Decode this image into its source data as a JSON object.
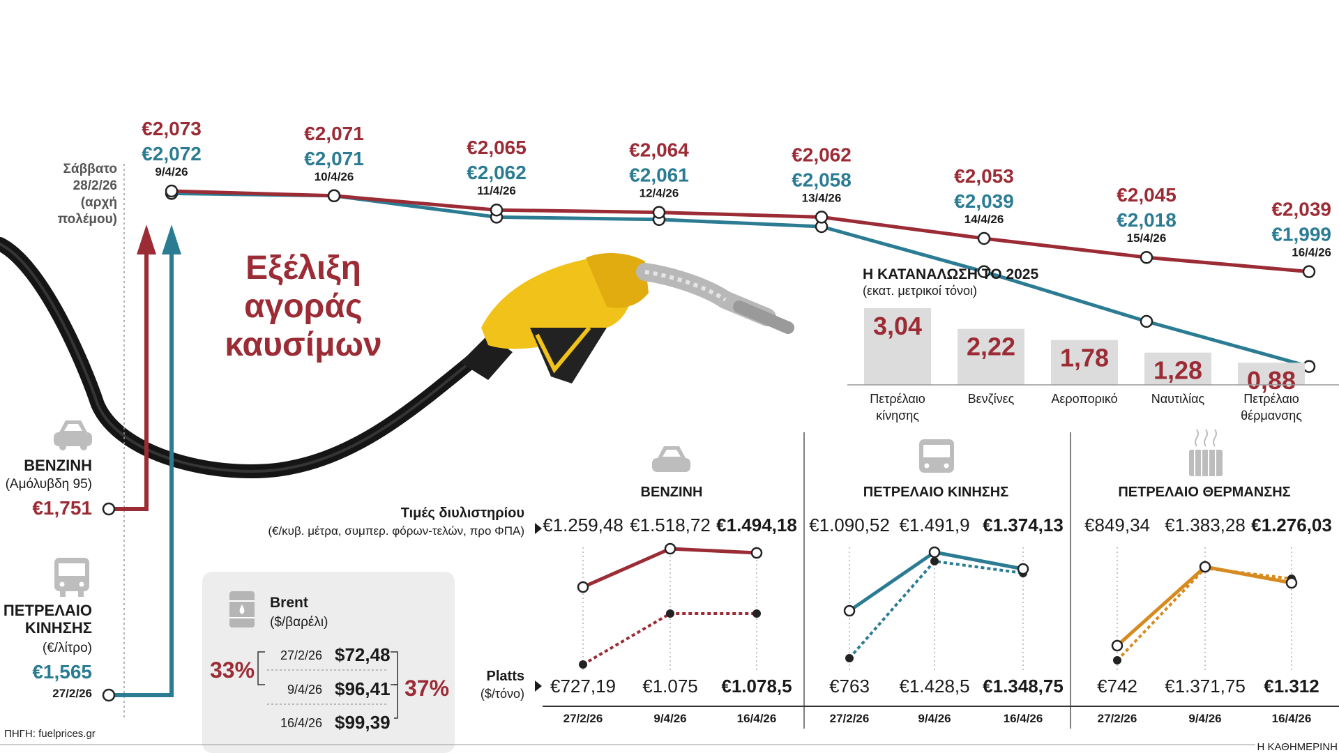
{
  "title": [
    "Εξέλιξη",
    "αγοράς",
    "καυσίμων"
  ],
  "source": "ΠΗΓΗ: fuelprices.gr",
  "publisher": "Η ΚΑΘΗΜΕΡΙΝΗ",
  "colors": {
    "petrol": "#9b2b35",
    "diesel": "#2b7c93",
    "heating": "#d68a1f",
    "bar": "#dcdcdc"
  },
  "timeline": {
    "start_label": [
      "Σάββατο",
      "28/2/26",
      "(αρχή",
      "πολέμου)"
    ]
  },
  "left": {
    "petrol": {
      "name": "ΒΕΝΖΙΝΗ",
      "sub": "(Αμόλυβδη 95)",
      "price": "€1,751"
    },
    "diesel": {
      "name": [
        "ΠΕΤΡΕΛΑΙΟ",
        "ΚΙΝΗΣΗΣ"
      ],
      "sub": "(€/λίτρο)",
      "price": "€1,565",
      "date": "27/2/26"
    }
  },
  "chart_data": [
    {
      "type": "line",
      "categories": [
        "9/4/26",
        "10/4/26",
        "11/4/26",
        "12/4/26",
        "13/4/26",
        "14/4/26",
        "15/4/26",
        "16/4/26"
      ],
      "series": [
        {
          "name": "ΒΕΝΖΙΝΗ",
          "values": [
            2.073,
            2.071,
            2.065,
            2.064,
            2.062,
            2.053,
            2.045,
            2.039
          ],
          "labels": [
            "€2,073",
            "€2,071",
            "€2,065",
            "€2,064",
            "€2,062",
            "€2,053",
            "€2,045",
            "€2,039"
          ]
        },
        {
          "name": "ΠΕΤΡΕΛΑΙΟ ΚΙΝΗΣΗΣ",
          "values": [
            2.072,
            2.071,
            2.062,
            2.061,
            2.058,
            2.039,
            2.018,
            1.999
          ],
          "labels": [
            "€2,072",
            "€2,071",
            "€2,062",
            "€2,061",
            "€2,058",
            "€2,039",
            "€2,018",
            "€1,999"
          ]
        }
      ],
      "start_values": {
        "ΒΕΝΖΙΝΗ": 1.751,
        "ΠΕΤΡΕΛΑΙΟ ΚΙΝΗΣΗΣ": 1.565
      }
    },
    {
      "type": "bar",
      "title": "Η ΚΑΤΑΝΑΛΩΣΗ ΤΟ 2025",
      "ylabel": "(εκατ. μετρικοί τόνοι)",
      "categories": [
        [
          "Πετρέλαιο",
          "κίνησης"
        ],
        [
          "Βενζίνες"
        ],
        [
          "Αεροπορικό"
        ],
        [
          "Ναυτιλίας"
        ],
        [
          "Πετρέλαιο",
          "θέρμανσης"
        ]
      ],
      "values": [
        3.04,
        2.22,
        1.78,
        1.28,
        0.88
      ],
      "value_labels": [
        "3,04",
        "2,22",
        "1,78",
        "1,28",
        "0,88"
      ]
    },
    {
      "type": "line",
      "title": "ΒΕΝΖΙΝΗ",
      "categories": [
        "27/2/26",
        "9/4/26",
        "16/4/26"
      ],
      "series": [
        {
          "name": "Τιμές διυλιστηρίου",
          "values": [
            1259.48,
            1518.72,
            1494.18
          ],
          "labels": [
            "€1.259,48",
            "€1.518,72",
            "€1.494,18"
          ]
        },
        {
          "name": "Platts",
          "values": [
            727.19,
            1075,
            1078.5
          ],
          "labels": [
            "€727,19",
            "€1.075",
            "€1.078,5"
          ]
        }
      ]
    },
    {
      "type": "line",
      "title": "ΠΕΤΡΕΛΑΙΟ ΚΙΝΗΣΗΣ",
      "categories": [
        "27/2/26",
        "9/4/26",
        "16/4/26"
      ],
      "series": [
        {
          "name": "Τιμές διυλιστηρίου",
          "values": [
            1090.52,
            1491.9,
            1374.13
          ],
          "labels": [
            "€1.090,52",
            "€1.491,9",
            "€1.374,13"
          ]
        },
        {
          "name": "Platts",
          "values": [
            763,
            1428.5,
            1348.75
          ],
          "labels": [
            "€763",
            "€1.428,5",
            "€1.348,75"
          ]
        }
      ]
    },
    {
      "type": "line",
      "title": "ΠΕΤΡΕΛΑΙΟ ΘΕΡΜΑΝΣΗΣ",
      "categories": [
        "27/2/26",
        "9/4/26",
        "16/4/26"
      ],
      "series": [
        {
          "name": "Τιμές διυλιστηρίου",
          "values": [
            849.34,
            1383.28,
            1276.03
          ],
          "labels": [
            "€849,34",
            "€1.383,28",
            "€1.276,03"
          ]
        },
        {
          "name": "Platts",
          "values": [
            742,
            1371.75,
            1312
          ],
          "labels": [
            "€742",
            "€1.371,75",
            "€1.312"
          ]
        }
      ]
    }
  ],
  "consumption": {
    "title": "Η ΚΑΤΑΝΑΛΩΣΗ ΤΟ 2025",
    "unit": "(εκατ. μετρικοί τόνοι)"
  },
  "panels_labels": {
    "refinery": [
      "Τιμές διυλιστηρίου",
      "(€/κυβ. μέτρα, συμπερ. φόρων-τελών, προ ΦΠΑ)"
    ],
    "platts": [
      "Platts",
      "($/τόνο)"
    ]
  },
  "brent": {
    "title": "Brent",
    "unit": "($/βαρέλι)",
    "rows": [
      {
        "date": "27/2/26",
        "value": "$72,48"
      },
      {
        "date": "9/4/26",
        "value": "$96,41"
      },
      {
        "date": "16/4/26",
        "value": "$99,39"
      }
    ],
    "change_left": "33%",
    "change_right": "37%"
  }
}
